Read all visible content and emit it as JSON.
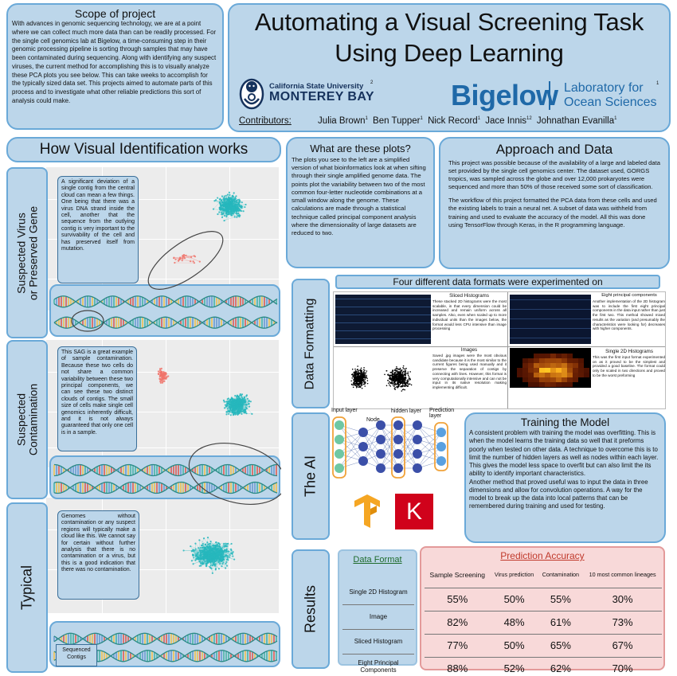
{
  "scope": {
    "title": "Scope of project",
    "body": "With advances in genomic sequencing technology, we are at a point where we can collect much more data than can be readily processed. For the single cell genomics lab at Bigelow, a time-consuming step in their genomic processing pipeline is sorting through samples that may have been contaminated during sequencing. Along with identifying any suspect viruses, the current method for accomplishing this is to visually analyze these PCA plots you see below. This can take weeks to accomplish for the typically sized data set. This projects aimed to automate parts of this process and to investigate what other reliable predictions this sort of analysis could make."
  },
  "header": {
    "title": "Automating a Visual Screening Task Using Deep Learning",
    "csumb_line1": "California State University",
    "csumb_line2": "MONTEREY BAY",
    "csumb_sup": "2",
    "bigelow": "Bigelow",
    "lab_line1": "Laboratory for",
    "lab_line2": "Ocean Sciences",
    "lab_sup": "1",
    "contributors_label": "Contributors:",
    "contributors": [
      {
        "name": "Julia Brown",
        "sup": "1"
      },
      {
        "name": "Ben Tupper",
        "sup": "1"
      },
      {
        "name": "Nick Record",
        "sup": "1"
      },
      {
        "name": "Jace Innis",
        "sup": "12"
      },
      {
        "name": "Johnathan Evanilla",
        "sup": "1"
      }
    ]
  },
  "how": {
    "title": "How Visual Identification works",
    "sections": [
      {
        "label_line1": "Suspected Virus",
        "label_line2": "or Preserved Gene",
        "callout": "A significant deviation of a single contig from the central cloud can mean a few things. One being that there was a virus DNA strand inside the cell, another that the sequence from the outlying contig is very important to the survivability of the cell and has preserved itself from mutation."
      },
      {
        "label_line1": "Suspected",
        "label_line2": "Contamination",
        "callout": "This SAG is a great example of sample contamination. Because these two cells do not share a common variability between these two principal components, we can see these two distinct clouds of contigs. The small size of cells make single cell genomics inherently difficult, and it is not always guaranteed that only one cell is in a sample."
      },
      {
        "label_line1": "Typical",
        "label_line2": "",
        "callout": "Genomes without contamination or any suspect regions will typically make a cloud like this. We cannot say for certain without further analysis that there is no contamination or a virus, but this is a good indication that there was no contamination."
      }
    ],
    "sequenced_line1": "Sequenced",
    "sequenced_line2": "Contigs"
  },
  "plots": {
    "title": "What are these plots?",
    "body": "The plots you see to the left are a simplified version of what bioinformatics look at when sifting through their single amplified genome data. The points plot the variability between two of the most common four-letter nucleotide combinations at a small window along the genome. These calculations are made through a statistical technique called principal component analysis where the dimensionality of large datasets are reduced to two."
  },
  "approach": {
    "title": "Approach and Data",
    "p1": "This project was possible because of the availability of a large and labeled data set provided by the single cell genomics center. The dataset used, GORGS tropics, was sampled across the globe and over 12,000 prokaryotes were sequenced and more than 50% of those received some sort of classification.",
    "p2": "The workflow of this project formatted the PCA data from these cells and used the existing labels to train a neural net. A subset of data was withheld from training and used to evaluate the accuracy of the model. All this was done using TensorFlow through Keras, in the R programming language."
  },
  "formatting": {
    "side_label": "Data Formatting",
    "banner": "Four different data formats were experimented on",
    "items": [
      {
        "title": "Sliced Histograms",
        "body": "These stacked 2D histograms were the most scalable, in that every dimension could be increased and remain uniform across all samples. Also, even when scaled up to more individual units than the images below, the format would less CPU intensive than image processing"
      },
      {
        "title": "Eight principal components",
        "body": "Another implementation of the 2D histogram was to include the first eight principal components in the data input rather than just the first two. This method showed mixed results as the variation (and presumably the characteristics were looking for) decreases with higher components."
      },
      {
        "title": "Images",
        "body": "Saved .jpg images were the most obvious candidate because it is the most similar to the current figures being used manually and it preserve the separation of contigs by connecting with lines. However, this format is very computationally intensive and can not be input in its native resolution making implementing difficult."
      },
      {
        "title": "Single 2D Histograms",
        "body": "This was the first input format experimented on as it proved to be the simplest and provided a good baseline. The format could only be scaled in two directions and proved to be the worst preforming"
      }
    ]
  },
  "ai": {
    "side_label": "The AI",
    "input_layer": "Input layer",
    "node": "Node",
    "hidden_layer": "hidden layer",
    "prediction_layer": "Prediction layer",
    "keras_letter": "K"
  },
  "training": {
    "title": "Training the Model",
    "p1": "A consistent problem with training the model was overfitting. This is when the model learns the training data so well that it preforms poorly when tested on other data. A technique to overcome this is to limit the number of hidden layers as well as nodes within each layer. This gives the model less space to overfit but can also limit the its ability to identify important characteristics.",
    "p2": "Another method that proved useful was to input the data in three dimensions and allow for convolution operations. A way for the model to break up the data into local patterns that can be remembered during training and used for testing."
  },
  "results": {
    "side_label": "Results",
    "data_format_header": "Data Format",
    "accuracy_title": "Prediction Accuracy",
    "columns": [
      "Sample Screening",
      "Virus prediction",
      "Contamination",
      "10 most common lineages"
    ],
    "rows": [
      {
        "format": "Single 2D Histogram",
        "values": [
          "55%",
          "50%",
          "55%",
          "30%"
        ]
      },
      {
        "format": "Image",
        "values": [
          "82%",
          "48%",
          "61%",
          "73%"
        ]
      },
      {
        "format": "Sliced Histogram",
        "values": [
          "77%",
          "50%",
          "65%",
          "67%"
        ]
      },
      {
        "format": "Eight Principal Components",
        "values": [
          "88%",
          "52%",
          "62%",
          "70%"
        ]
      }
    ]
  },
  "colors": {
    "panel": "#bcd6ea",
    "border": "#6aa9d8",
    "teal_points": "#27b7bd",
    "salmon_points": "#f0746b",
    "bigelow_blue": "#1f69a8",
    "csumb_navy": "#16325c",
    "accuracy_red": "#c0392b",
    "data_format_green": "#1e6b2c"
  }
}
